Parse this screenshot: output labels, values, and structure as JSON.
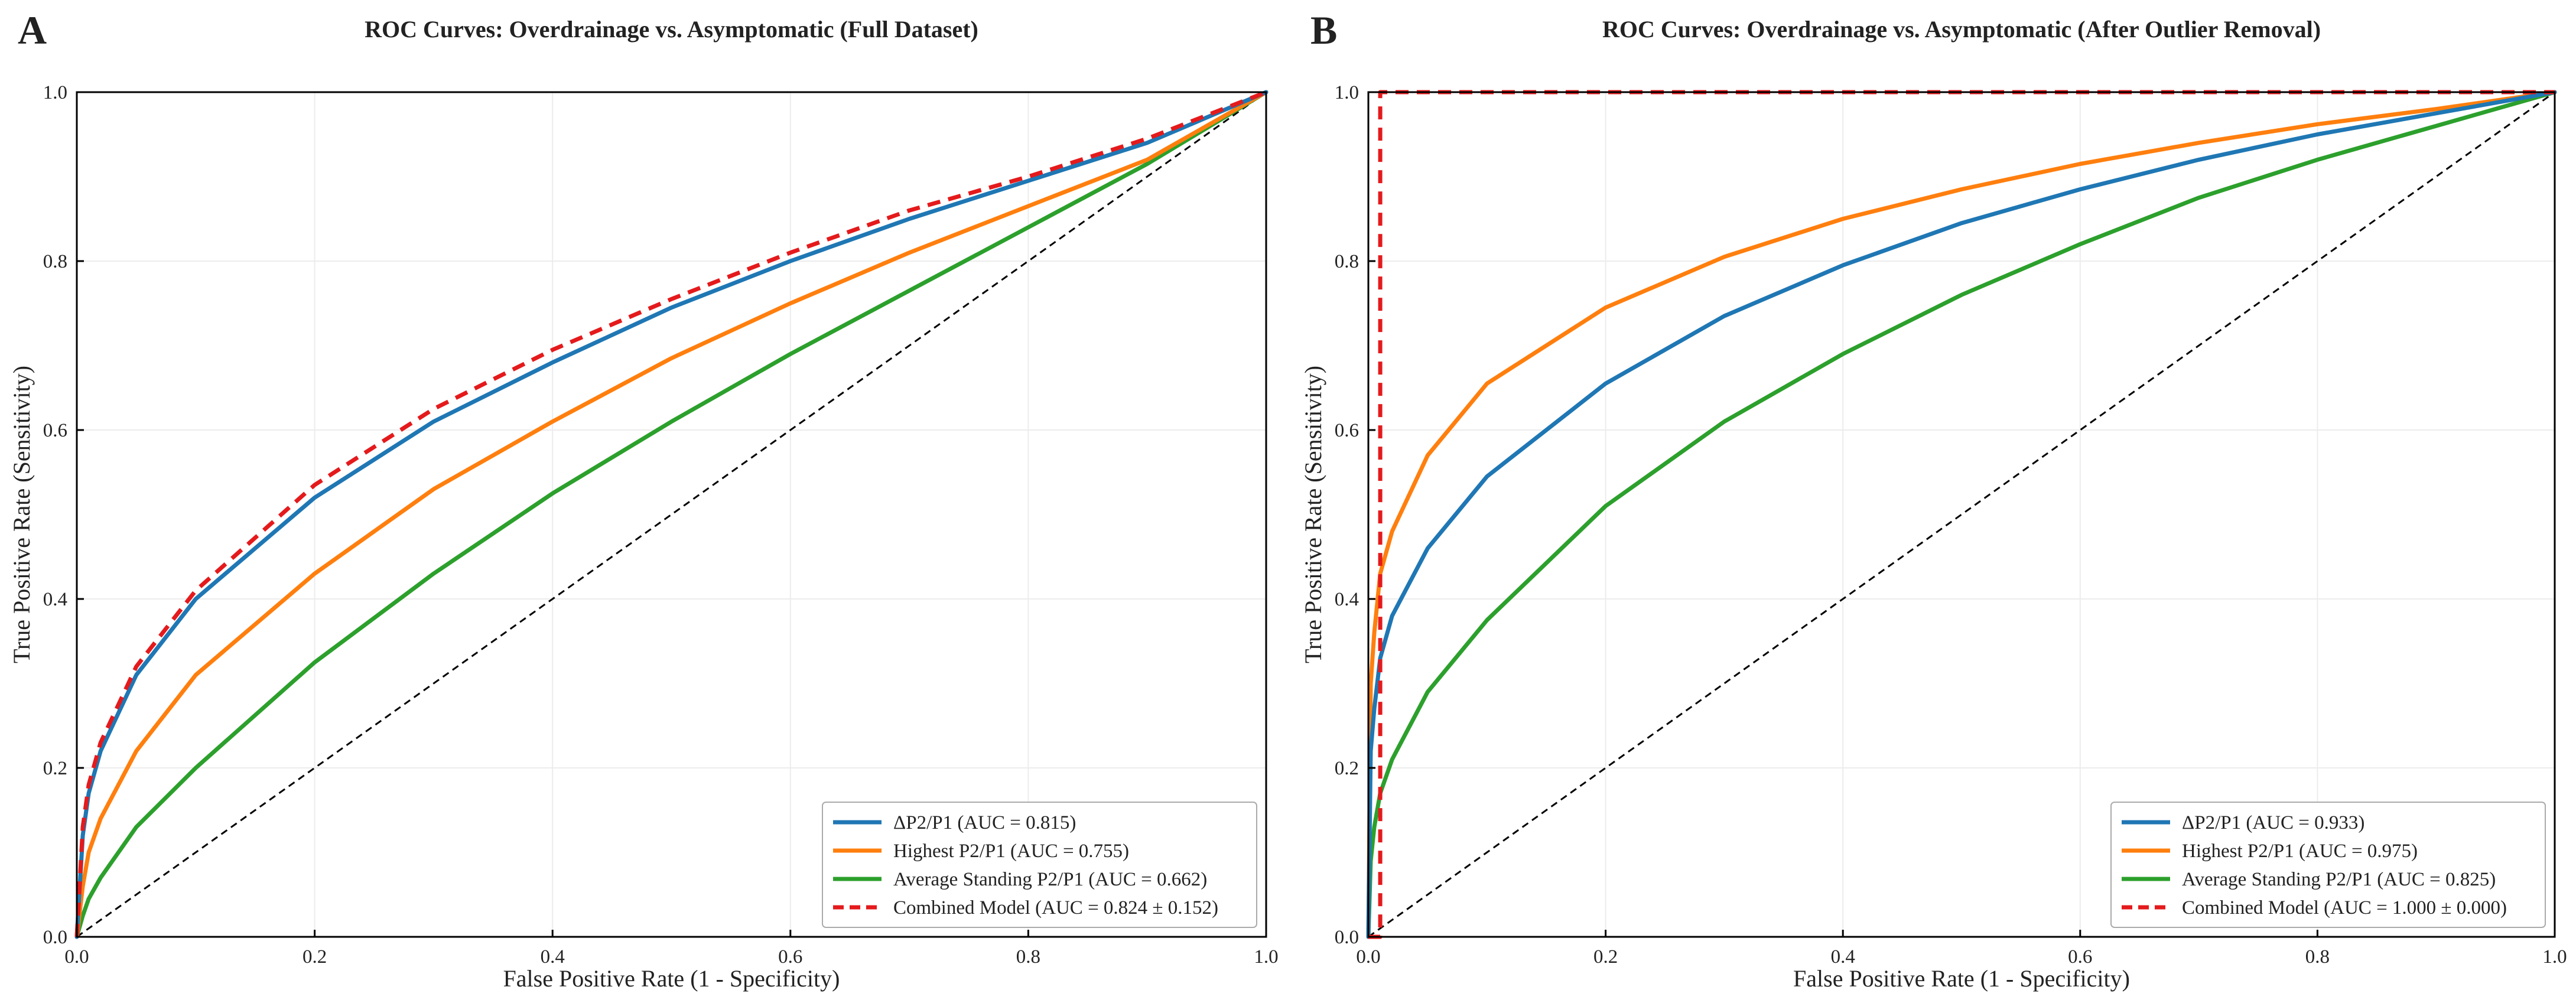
{
  "colors": {
    "blue": "#1f77b4",
    "orange": "#ff7f0e",
    "green": "#2ca02c",
    "red": "#e41a1c",
    "diagonal": "#000000",
    "grid": "#ececec",
    "axis": "#000000",
    "legend_border": "#aaaaaa"
  },
  "chart_data": [
    {
      "type": "line",
      "panel": "A",
      "title": "ROC Curves: Overdrainage vs. Asymptomatic (Full Dataset)",
      "xlabel": "False Positive Rate (1 - Specificity)",
      "ylabel": "True Positive Rate (Sensitivity)",
      "xlim": [
        0,
        1
      ],
      "ylim": [
        0,
        1.0
      ],
      "xticks": [
        "0.0",
        "0.2",
        "0.4",
        "0.6",
        "0.8",
        "1.0"
      ],
      "yticks": [
        "0.0",
        "0.2",
        "0.4",
        "0.6",
        "0.8",
        "1.0"
      ],
      "grid": true,
      "legend_position": "lower-right",
      "reference_line": {
        "name": "chance",
        "x": [
          0,
          1
        ],
        "y": [
          0,
          1
        ],
        "style": "dashed"
      },
      "series": [
        {
          "name": "ΔP2/P1 (AUC = 0.815)",
          "color": "blue",
          "style": "solid",
          "x": [
            0,
            0.005,
            0.01,
            0.02,
            0.05,
            0.1,
            0.2,
            0.3,
            0.4,
            0.5,
            0.6,
            0.7,
            0.8,
            0.9,
            1.0
          ],
          "y": [
            0,
            0.12,
            0.17,
            0.22,
            0.31,
            0.4,
            0.52,
            0.61,
            0.68,
            0.745,
            0.8,
            0.85,
            0.895,
            0.94,
            1.0
          ]
        },
        {
          "name": "Highest P2/P1 (AUC = 0.755)",
          "color": "orange",
          "style": "solid",
          "x": [
            0,
            0.005,
            0.01,
            0.02,
            0.05,
            0.1,
            0.2,
            0.3,
            0.4,
            0.5,
            0.6,
            0.7,
            0.8,
            0.9,
            1.0
          ],
          "y": [
            0,
            0.06,
            0.1,
            0.14,
            0.22,
            0.31,
            0.43,
            0.53,
            0.61,
            0.685,
            0.75,
            0.81,
            0.865,
            0.92,
            1.0
          ]
        },
        {
          "name": "Average Standing P2/P1 (AUC = 0.662)",
          "color": "green",
          "style": "solid",
          "x": [
            0,
            0.005,
            0.01,
            0.02,
            0.05,
            0.1,
            0.2,
            0.3,
            0.4,
            0.5,
            0.6,
            0.7,
            0.8,
            0.9,
            1.0
          ],
          "y": [
            0,
            0.025,
            0.045,
            0.07,
            0.13,
            0.2,
            0.325,
            0.43,
            0.525,
            0.61,
            0.69,
            0.765,
            0.84,
            0.915,
            1.0
          ]
        },
        {
          "name": "Combined Model (AUC = 0.824 ± 0.152)",
          "color": "red",
          "style": "dashed",
          "x": [
            0,
            0.005,
            0.01,
            0.02,
            0.05,
            0.1,
            0.2,
            0.3,
            0.4,
            0.5,
            0.6,
            0.7,
            0.8,
            0.9,
            1.0
          ],
          "y": [
            0,
            0.13,
            0.18,
            0.23,
            0.32,
            0.41,
            0.535,
            0.625,
            0.695,
            0.755,
            0.81,
            0.86,
            0.9,
            0.945,
            1.0
          ]
        }
      ]
    },
    {
      "type": "line",
      "panel": "B",
      "title": "ROC Curves: Overdrainage vs. Asymptomatic (After Outlier Removal)",
      "xlabel": "False Positive Rate (1 - Specificity)",
      "ylabel": "True Positive Rate (Sensitivity)",
      "xlim": [
        0,
        1
      ],
      "ylim": [
        0,
        1.0
      ],
      "xticks": [
        "0.0",
        "0.2",
        "0.4",
        "0.6",
        "0.8",
        "1.0"
      ],
      "yticks": [
        "0.0",
        "0.2",
        "0.4",
        "0.6",
        "0.8",
        "1.0"
      ],
      "grid": true,
      "legend_position": "lower-right",
      "reference_line": {
        "name": "chance",
        "x": [
          0,
          1
        ],
        "y": [
          0,
          1
        ],
        "style": "dashed"
      },
      "series": [
        {
          "name": "ΔP2/P1 (AUC = 0.933)",
          "color": "blue",
          "style": "solid",
          "x": [
            0,
            0.002,
            0.005,
            0.01,
            0.02,
            0.05,
            0.1,
            0.2,
            0.3,
            0.4,
            0.5,
            0.6,
            0.7,
            0.8,
            0.9,
            1.0
          ],
          "y": [
            0,
            0.22,
            0.27,
            0.33,
            0.38,
            0.46,
            0.545,
            0.655,
            0.735,
            0.795,
            0.845,
            0.885,
            0.92,
            0.95,
            0.975,
            1.0
          ]
        },
        {
          "name": "Highest P2/P1 (AUC = 0.975)",
          "color": "orange",
          "style": "solid",
          "x": [
            0,
            0.002,
            0.005,
            0.01,
            0.02,
            0.05,
            0.1,
            0.2,
            0.3,
            0.4,
            0.5,
            0.6,
            0.7,
            0.8,
            0.9,
            1.0
          ],
          "y": [
            0,
            0.3,
            0.36,
            0.43,
            0.48,
            0.57,
            0.655,
            0.745,
            0.805,
            0.85,
            0.885,
            0.915,
            0.94,
            0.962,
            0.98,
            1.0
          ]
        },
        {
          "name": "Average Standing P2/P1 (AUC = 0.825)",
          "color": "green",
          "style": "solid",
          "x": [
            0,
            0.002,
            0.005,
            0.01,
            0.02,
            0.05,
            0.1,
            0.2,
            0.3,
            0.4,
            0.5,
            0.6,
            0.7,
            0.8,
            0.9,
            1.0
          ],
          "y": [
            0,
            0.09,
            0.13,
            0.17,
            0.21,
            0.29,
            0.375,
            0.51,
            0.61,
            0.69,
            0.76,
            0.82,
            0.875,
            0.92,
            0.96,
            1.0
          ]
        },
        {
          "name": "Combined Model (AUC = 1.000 ± 0.000)",
          "color": "red",
          "style": "dashed",
          "x": [
            0,
            0.01,
            0.01,
            1.0
          ],
          "y": [
            0,
            0,
            1.0,
            1.0
          ]
        }
      ]
    }
  ]
}
